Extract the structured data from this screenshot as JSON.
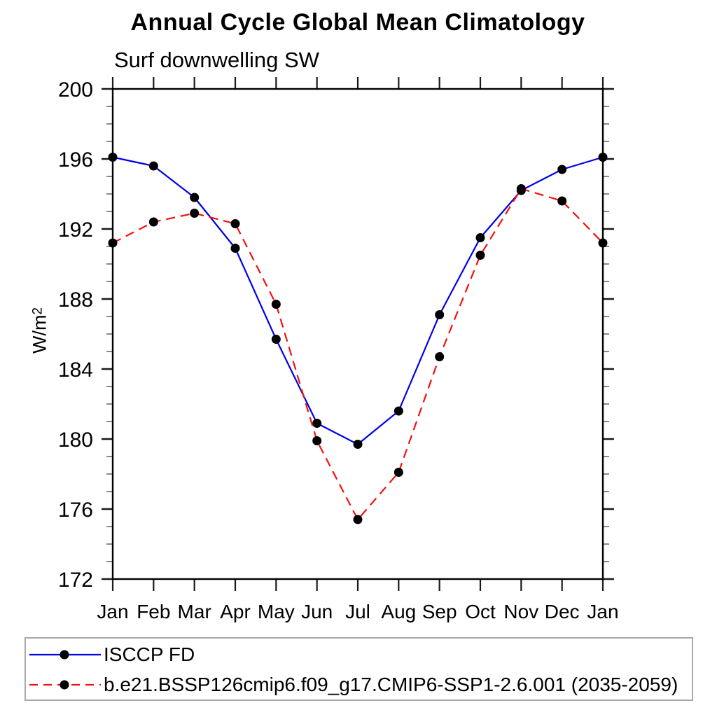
{
  "chart": {
    "title": "Annual Cycle Global Mean Climatology",
    "subtitle": "Surf downwelling SW",
    "ylabel_base": "W/m",
    "ylabel_exp": "2"
  },
  "legend": {
    "entries": [
      {
        "label": "ISCCP FD",
        "color": "#0000e8",
        "dash": "solid",
        "marker_color": "#000000"
      },
      {
        "label": "b.e21.BSSP126cmip6.f09_g17.CMIP6-SSP1-2.6.001 (2035-2059)",
        "color": "#f50f0f",
        "dash": "dashed",
        "marker_color": "#000000"
      }
    ]
  },
  "chart_data": {
    "type": "line",
    "title": "Annual Cycle Global Mean Climatology",
    "left_string": "Surf downwelling SW",
    "ylabel": "W/m2",
    "categories": [
      "Jan",
      "Feb",
      "Mar",
      "Apr",
      "May",
      "Jun",
      "Jul",
      "Aug",
      "Sep",
      "Oct",
      "Nov",
      "Dec",
      "Jan"
    ],
    "series": [
      {
        "name": "ISCCP FD",
        "color": "#0000e8",
        "style": "solid",
        "marker": "filled-circle",
        "marker_color": "#000000",
        "values": [
          196.1,
          195.6,
          193.8,
          190.9,
          185.7,
          180.9,
          179.7,
          181.6,
          187.1,
          191.5,
          194.2,
          195.4,
          196.1
        ]
      },
      {
        "name": "b.e21.BSSP126cmip6.f09_g17.CMIP6-SSP1-2.6.001 (2035-2059)",
        "color": "#f50f0f",
        "style": "dashed",
        "marker": "filled-circle",
        "marker_color": "#000000",
        "values": [
          191.2,
          192.4,
          192.9,
          192.3,
          187.7,
          179.9,
          175.4,
          178.1,
          184.7,
          190.5,
          194.3,
          193.6,
          191.2
        ]
      }
    ],
    "ylim": [
      172,
      200
    ],
    "ytick_major": [
      172,
      176,
      180,
      184,
      188,
      192,
      196,
      200
    ],
    "ytick_minor_step": 1,
    "grid": false,
    "legend_position": "bottom"
  }
}
